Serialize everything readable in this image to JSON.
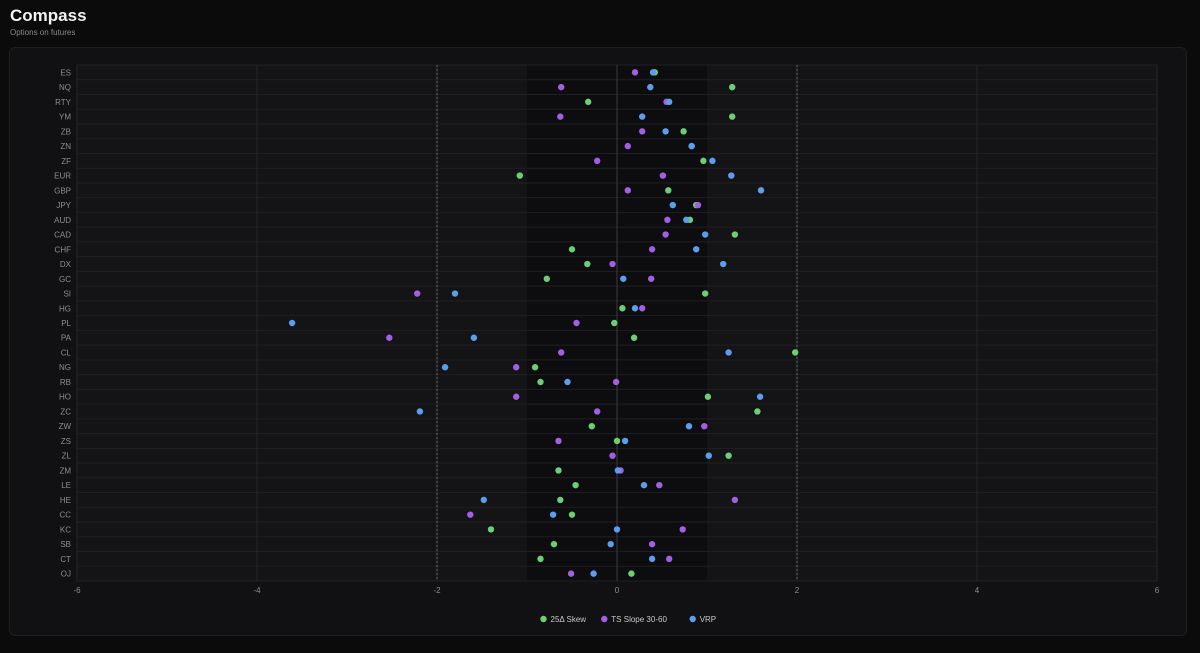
{
  "header": {
    "title": "Compass",
    "subtitle": "Options on futures"
  },
  "colors": {
    "skew": "#6ccf73",
    "ts_slope": "#a45ee5",
    "vrp": "#5b9ef0"
  },
  "chart_data": {
    "type": "scatter",
    "orientation": "horizontal",
    "categories": [
      "ES",
      "NQ",
      "RTY",
      "YM",
      "ZB",
      "ZN",
      "ZF",
      "EUR",
      "GBP",
      "JPY",
      "AUD",
      "CAD",
      "CHF",
      "DX",
      "GC",
      "SI",
      "HG",
      "PL",
      "PA",
      "CL",
      "NG",
      "RB",
      "HO",
      "ZC",
      "ZW",
      "ZS",
      "ZL",
      "ZM",
      "LE",
      "HE",
      "CC",
      "KC",
      "SB",
      "CT",
      "OJ"
    ],
    "xlim": [
      -6,
      6
    ],
    "xticks": [
      -6,
      -4,
      -2,
      0,
      2,
      4,
      6
    ],
    "reference_lines": [
      -2,
      2
    ],
    "shaded_band": [
      -1,
      1
    ],
    "grid": true,
    "legend_position": "bottom-center",
    "series": [
      {
        "name": "25Δ Skew",
        "color": "#6ccf73",
        "values": [
          0.42,
          1.28,
          -0.32,
          1.28,
          0.74,
          0.83,
          0.96,
          -1.08,
          0.57,
          0.88,
          0.81,
          1.31,
          -0.5,
          -0.33,
          -0.78,
          0.98,
          0.06,
          -0.03,
          0.19,
          1.98,
          -0.91,
          -0.85,
          1.01,
          1.56,
          -0.28,
          0.0,
          1.24,
          -0.65,
          -0.46,
          -0.63,
          -0.5,
          -1.4,
          -0.7,
          -0.85,
          0.16
        ]
      },
      {
        "name": "TS Slope 30-60",
        "color": "#a45ee5",
        "values": [
          0.2,
          -0.62,
          0.55,
          -0.63,
          0.28,
          0.12,
          -0.22,
          0.51,
          0.12,
          0.9,
          0.56,
          0.54,
          0.39,
          -0.05,
          0.38,
          -2.22,
          0.28,
          -0.45,
          -2.53,
          -0.62,
          -1.12,
          -0.01,
          -1.12,
          -0.22,
          0.97,
          -0.65,
          -0.05,
          0.04,
          0.47,
          1.31,
          -1.63,
          0.73,
          0.39,
          0.58,
          -0.51
        ]
      },
      {
        "name": "VRP",
        "color": "#5b9ef0",
        "values": [
          0.4,
          0.37,
          0.58,
          0.28,
          0.54,
          0.83,
          1.06,
          1.27,
          1.6,
          0.62,
          0.77,
          0.98,
          0.88,
          1.18,
          0.07,
          -1.8,
          0.2,
          -3.61,
          -1.59,
          1.24,
          -1.91,
          -0.55,
          1.59,
          -2.19,
          0.8,
          0.09,
          1.02,
          0.01,
          0.3,
          -1.48,
          -0.71,
          0.0,
          -0.07,
          0.39,
          -0.26
        ]
      }
    ]
  }
}
